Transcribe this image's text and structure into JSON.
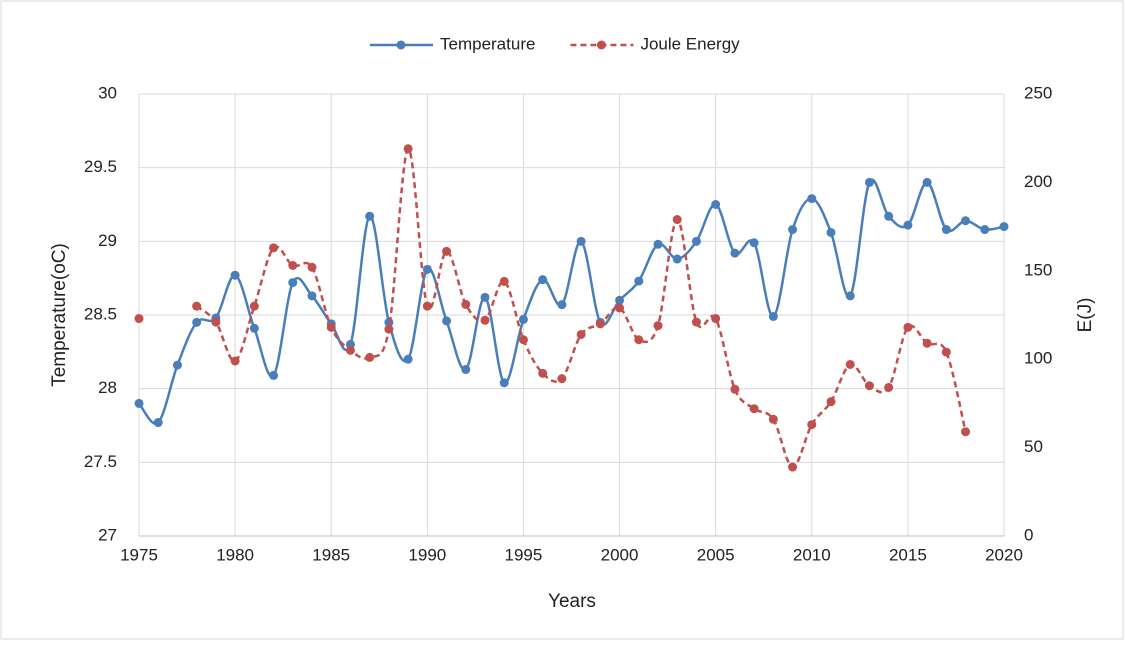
{
  "chart_data": {
    "type": "line",
    "x_label": "Years",
    "y_label": "Temperature(oC)",
    "y2_label": "E(J)",
    "x": [
      1975,
      1976,
      1977,
      1978,
      1979,
      1980,
      1981,
      1982,
      1983,
      1984,
      1985,
      1986,
      1987,
      1988,
      1989,
      1990,
      1991,
      1992,
      1993,
      1994,
      1995,
      1996,
      1997,
      1998,
      1999,
      2000,
      2001,
      2002,
      2003,
      2004,
      2005,
      2006,
      2007,
      2008,
      2009,
      2010,
      2011,
      2012,
      2013,
      2014,
      2015,
      2016,
      2017,
      2018,
      2019,
      2020
    ],
    "series": [
      {
        "name": "Temperature",
        "color": "#4a7ebb",
        "dash": false,
        "values": [
          27.9,
          27.77,
          28.16,
          28.45,
          28.48,
          28.77,
          28.41,
          28.09,
          28.72,
          28.63,
          28.44,
          28.3,
          29.17,
          28.45,
          28.2,
          28.81,
          28.46,
          28.13,
          28.62,
          28.04,
          28.47,
          28.74,
          28.57,
          29.0,
          28.45,
          28.6,
          28.73,
          28.98,
          28.88,
          29.0,
          29.25,
          28.92,
          28.99,
          28.49,
          29.08,
          29.29,
          29.06,
          28.63,
          29.4,
          29.17,
          29.11,
          29.4,
          29.08,
          29.14,
          29.08,
          29.1
        ]
      },
      {
        "name": "Joule Energy",
        "color": "#c0504d",
        "dash": true,
        "axis": "y2",
        "values": [
          123,
          null,
          null,
          130,
          121,
          99,
          130,
          163,
          153,
          152,
          118,
          105,
          101,
          117,
          219,
          130,
          161,
          131,
          122,
          144,
          111,
          92,
          89,
          114,
          120,
          129,
          111,
          119,
          179,
          121,
          123,
          83,
          72,
          66,
          39,
          63,
          76,
          97,
          85,
          84,
          118,
          109,
          104,
          59,
          null,
          null
        ]
      }
    ],
    "xlim": [
      1975,
      2020
    ],
    "xticks": [
      1975,
      1980,
      1985,
      1990,
      1995,
      2000,
      2005,
      2010,
      2015,
      2020
    ],
    "ylim": [
      27,
      30
    ],
    "yticks": [
      27,
      27.5,
      28,
      28.5,
      29,
      29.5,
      30
    ],
    "y2lim": [
      0,
      250
    ],
    "y2ticks": [
      0,
      50,
      100,
      150,
      200,
      250
    ],
    "grid": true,
    "smooth": true,
    "legend": "top"
  }
}
